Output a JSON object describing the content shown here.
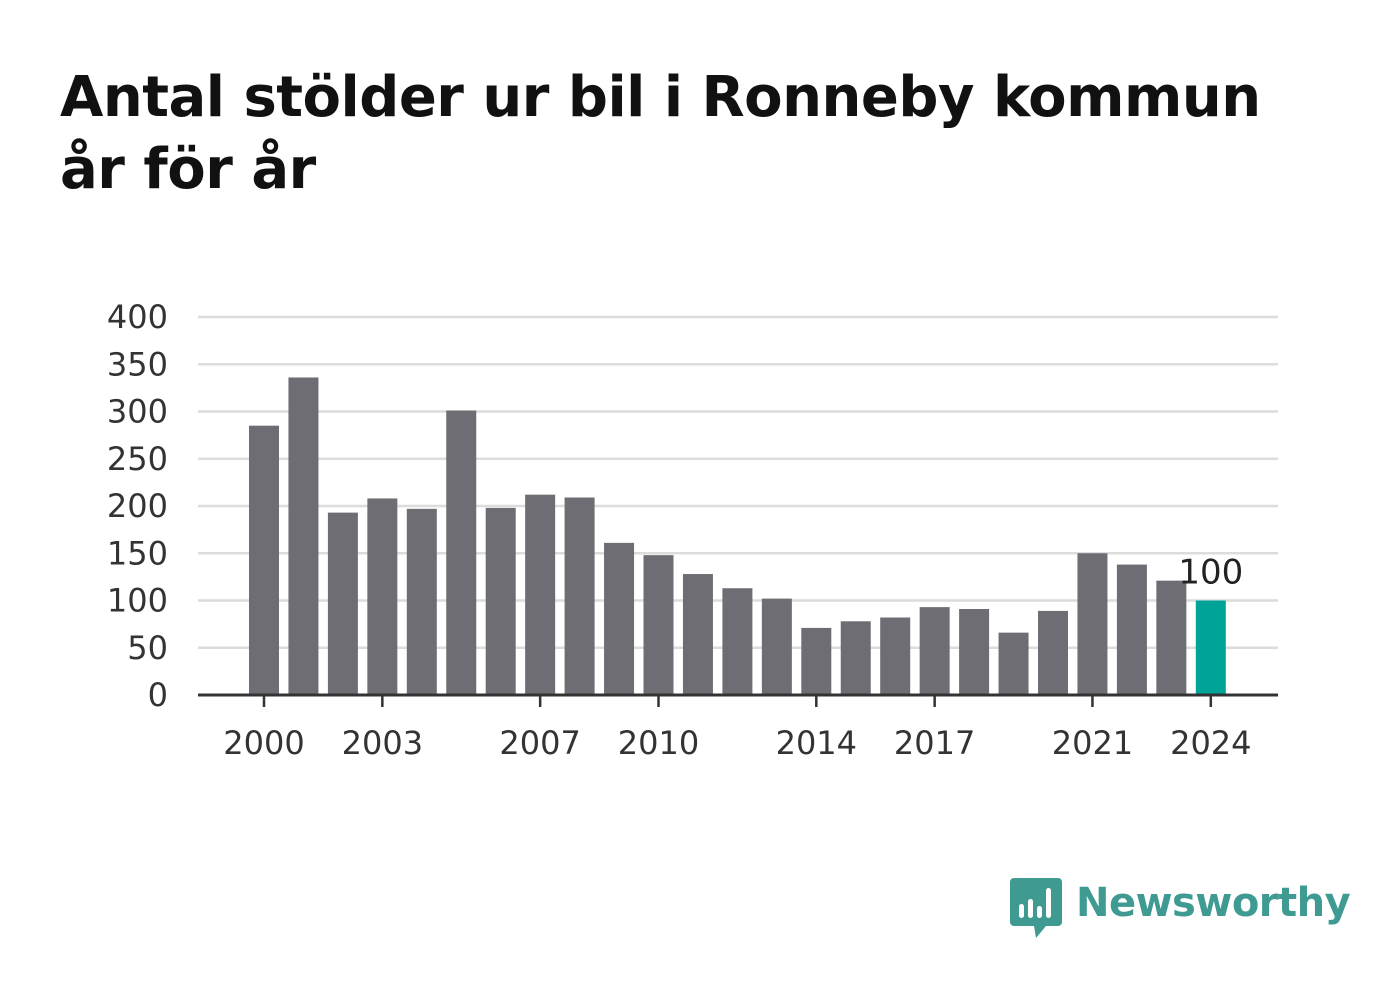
{
  "title": "Antal stölder ur bil i Ronneby kommun år för år",
  "brand": {
    "name": "Newsworthy",
    "icon": "newsworthy-logo-icon",
    "color": "#3f9b92"
  },
  "chart_data": {
    "type": "bar",
    "title": "Antal stölder ur bil i Ronneby kommun år för år",
    "xlabel": "",
    "ylabel": "",
    "ylim": [
      0,
      400
    ],
    "yticks": [
      0,
      50,
      100,
      150,
      200,
      250,
      300,
      350,
      400
    ],
    "xtick_labels": [
      "2000",
      "2003",
      "2007",
      "2010",
      "2014",
      "2017",
      "2021",
      "2024"
    ],
    "grid": true,
    "categories": [
      "2000",
      "2001",
      "2002",
      "2003",
      "2004",
      "2005",
      "2006",
      "2007",
      "2008",
      "2009",
      "2010",
      "2011",
      "2012",
      "2013",
      "2014",
      "2015",
      "2016",
      "2017",
      "2018",
      "2019",
      "2020",
      "2021",
      "2022",
      "2023",
      "2024"
    ],
    "values": [
      285,
      336,
      193,
      208,
      197,
      301,
      198,
      212,
      209,
      161,
      148,
      128,
      113,
      102,
      71,
      78,
      82,
      93,
      91,
      66,
      89,
      150,
      138,
      121,
      100
    ],
    "highlight_index": 24,
    "highlight_label": "100",
    "colors": {
      "bar": "#6e6d73",
      "highlight": "#00a398",
      "grid": "#dcdcdc",
      "axis": "#333333",
      "text": "#333333"
    }
  }
}
